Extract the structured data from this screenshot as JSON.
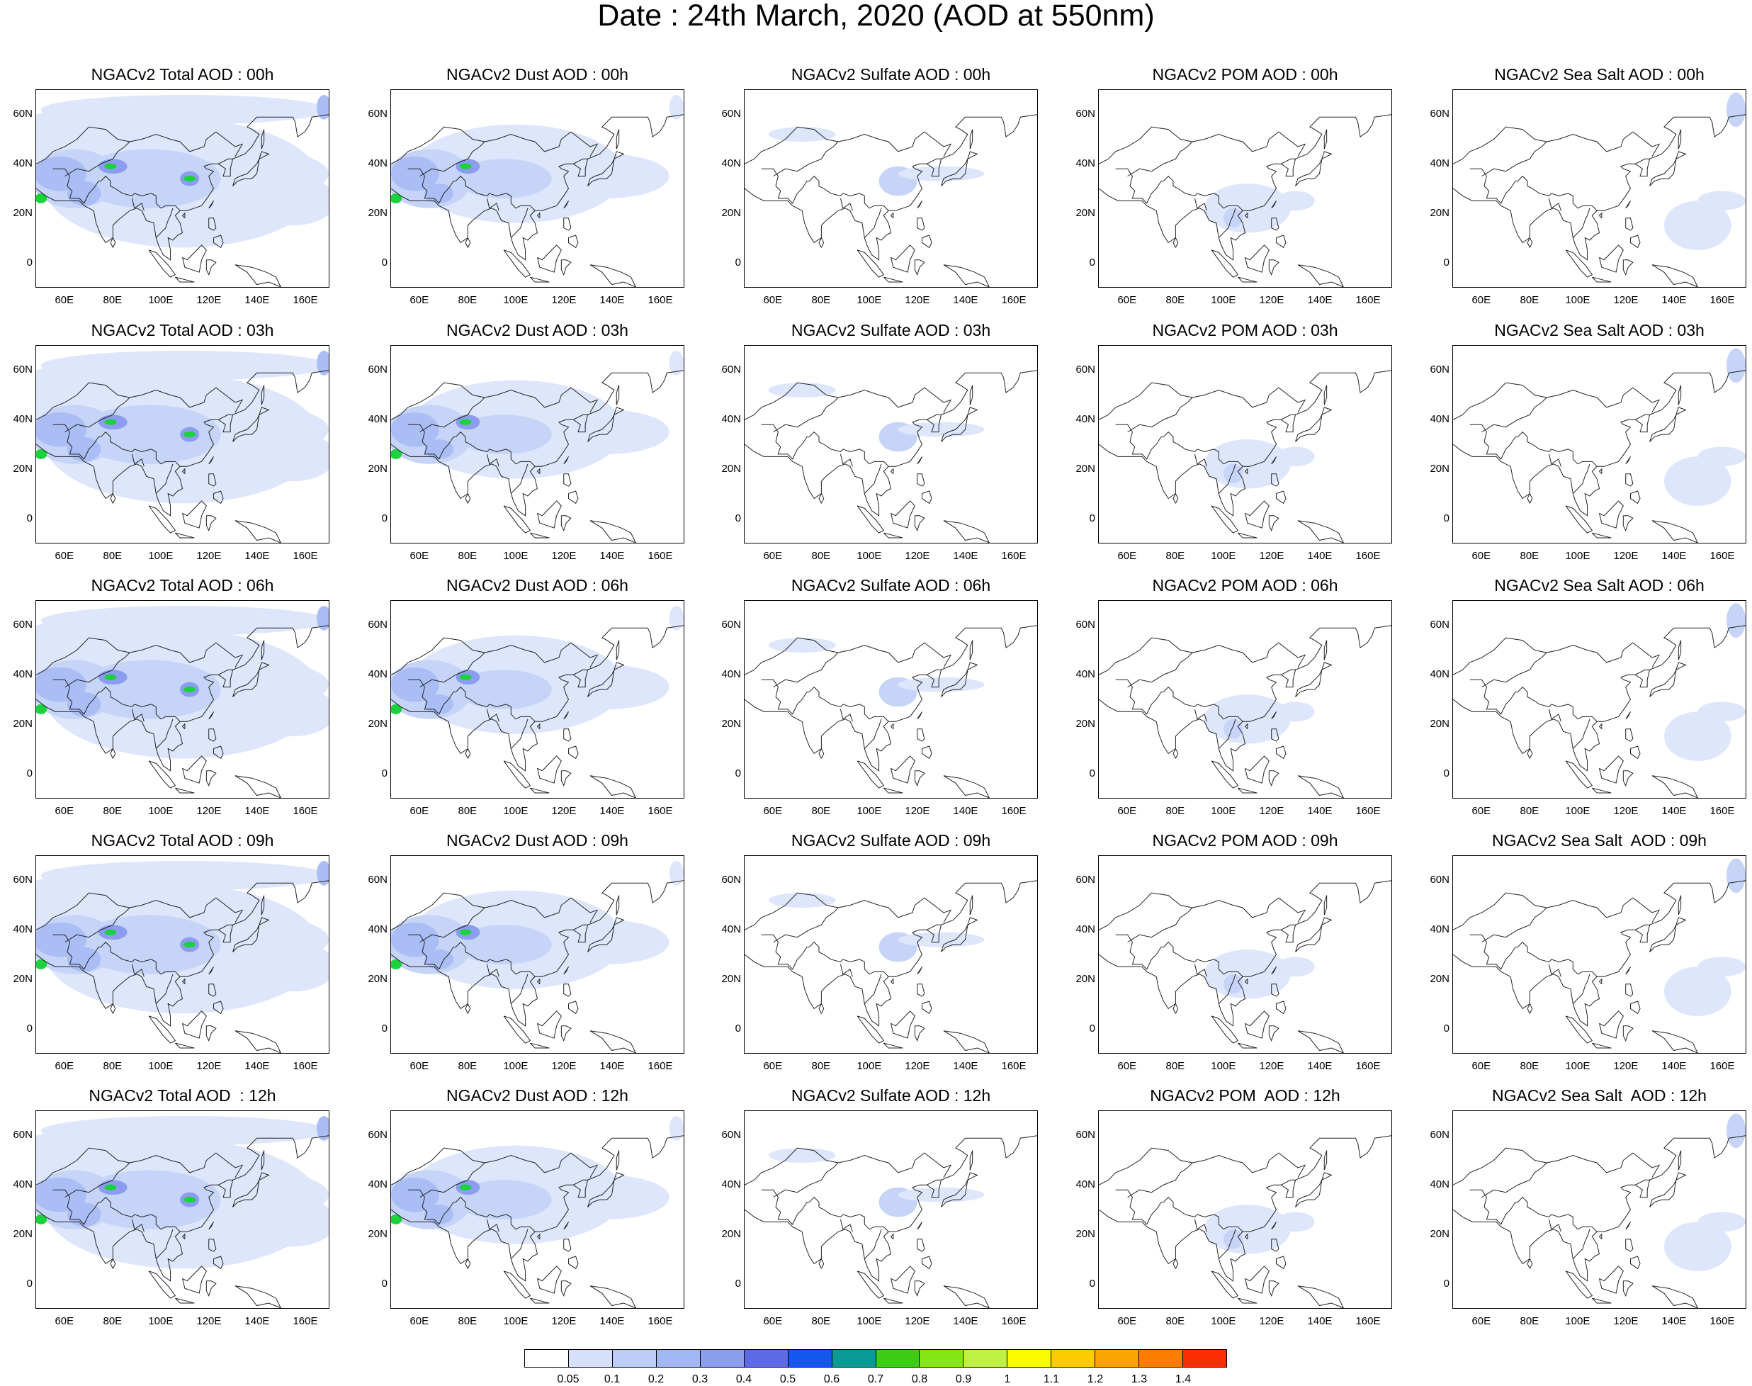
{
  "title": "Date : 24th March, 2020 (AOD at 550nm)",
  "rows": [
    {
      "panels": [
        "NGACv2 Total AOD : 00h",
        "NGACv2 Dust AOD : 00h",
        "NGACv2 Sulfate AOD : 00h",
        "NGACv2 POM AOD : 00h",
        "NGACv2 Sea Salt AOD : 00h"
      ]
    },
    {
      "panels": [
        "NGACv2 Total AOD : 03h",
        "NGACv2 Dust AOD : 03h",
        "NGACv2 Sulfate AOD : 03h",
        "NGACv2 POM AOD : 03h",
        "NGACv2 Sea Salt AOD : 03h"
      ]
    },
    {
      "panels": [
        "NGACv2 Total AOD : 06h",
        "NGACv2 Dust AOD : 06h",
        "NGACv2 Sulfate AOD : 06h",
        "NGACv2 POM AOD : 06h",
        "NGACv2 Sea Salt AOD : 06h"
      ]
    },
    {
      "panels": [
        "NGACv2 Total AOD : 09h",
        "NGACv2 Dust AOD : 09h",
        "NGACv2 Sulfate AOD : 09h",
        "NGACv2 POM AOD : 09h",
        "NGACv2 Sea Salt  AOD : 09h"
      ]
    },
    {
      "panels": [
        "NGACv2 Total AOD  : 12h",
        "NGACv2 Dust AOD : 12h",
        "NGACv2 Sulfate AOD : 12h",
        "NGACv2 POM  AOD : 12h",
        "NGACv2 Sea Salt  AOD : 12h"
      ]
    }
  ],
  "y_ticks": [
    "60N",
    "40N",
    "20N",
    "0"
  ],
  "x_ticks": [
    "60E",
    "80E",
    "100E",
    "120E",
    "140E",
    "160E"
  ],
  "colorbar": {
    "labels": [
      "0.05",
      "0.1",
      "0.2",
      "0.3",
      "0.4",
      "0.5",
      "0.6",
      "0.7",
      "0.8",
      "0.9",
      "1",
      "1.1",
      "1.2",
      "1.3",
      "1.4"
    ],
    "colors": [
      "#ffffff",
      "#d6e0fa",
      "#bccdf8",
      "#a2b8f4",
      "#8a9ff0",
      "#5c6ae6",
      "#1458f0",
      "#0a9a96",
      "#3ccd14",
      "#84e614",
      "#bff044",
      "#fcfc00",
      "#fccb00",
      "#fca500",
      "#fc7d00",
      "#fa2e00"
    ]
  },
  "field_palette": [
    "#dde6fb",
    "#c6d4f8",
    "#aabdf5",
    "#8c9df0",
    "#6d7ee8",
    "#19d23c"
  ]
}
